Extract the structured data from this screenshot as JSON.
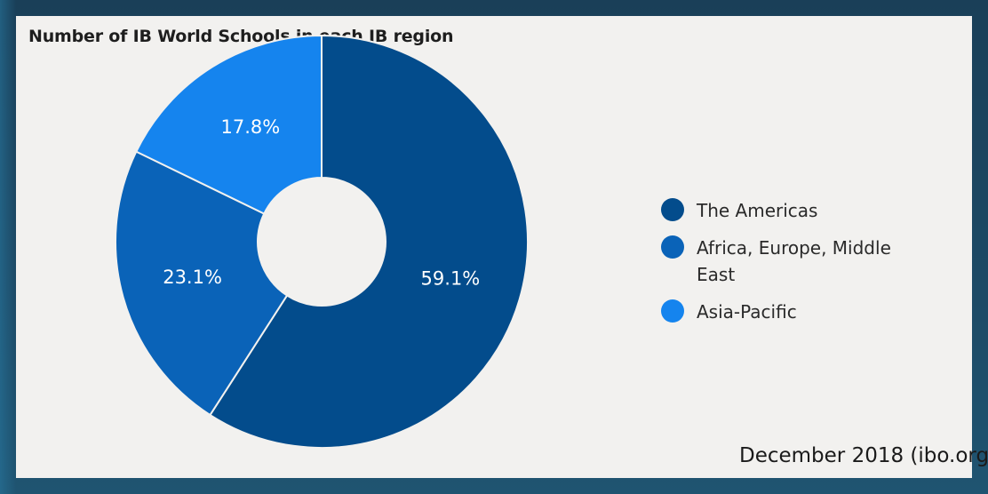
{
  "chart_data": {
    "type": "pie",
    "title": "Number of IB World Schools in each IB region",
    "categories": [
      "The Americas",
      "Africa, Europe, Middle East",
      "Asia-Pacific"
    ],
    "values": [
      59.1,
      23.1,
      17.8
    ],
    "value_labels": [
      "59.1%",
      "23.1%",
      "17.8%"
    ],
    "colors": [
      "#034c8c",
      "#0a63b8",
      "#1584ee"
    ],
    "slice_border_color": "#f2f1ef",
    "start_angle_deg": 0,
    "direction": "clockwise",
    "donut": true,
    "legend_position": "right"
  },
  "legend": {
    "items": [
      {
        "label": "The Americas",
        "color": "#034c8c"
      },
      {
        "label": "Africa, Europe, Middle East",
        "color": "#0a63b8"
      },
      {
        "label": "Asia-Pacific",
        "color": "#1584ee"
      }
    ]
  },
  "source_note": "December 2018 (ibo.org)",
  "colors": {
    "panel_background": "#f2f1ef",
    "slide_background": "#1d4a66",
    "title_text": "#1e1e1e"
  }
}
